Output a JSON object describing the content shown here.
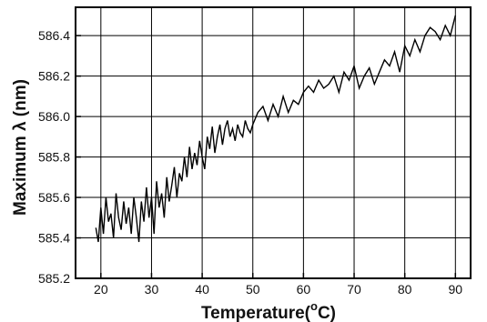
{
  "chart_data": {
    "type": "line",
    "title": "",
    "xlabel": "Temperature( °C)",
    "xlabel_main": "Temperature(",
    "xlabel_sup": "o",
    "xlabel_unit": "C)",
    "ylabel": "Maximum λ (nm)",
    "xlim": [
      15,
      93
    ],
    "ylim": [
      585.2,
      586.54
    ],
    "xticks": [
      20,
      30,
      40,
      50,
      60,
      70,
      80,
      90
    ],
    "xtick_labels": [
      "20",
      "30",
      "40",
      "50",
      "60",
      "70",
      "80",
      "90"
    ],
    "yticks": [
      585.2,
      585.4,
      585.6,
      585.8,
      586.0,
      586.2,
      586.4
    ],
    "ytick_labels": [
      "585.2",
      "585.4",
      "585.6",
      "585.8",
      "586.0",
      "586.2",
      "586.4"
    ],
    "grid": true,
    "series": [
      {
        "x": [
          19.0,
          19.5,
          20.0,
          20.5,
          21.0,
          21.5,
          22.0,
          22.5,
          23.0,
          23.5,
          24.0,
          24.5,
          25.0,
          25.5,
          26.0,
          26.5,
          27.0,
          27.5,
          28.0,
          28.5,
          29.0,
          29.5,
          30.0,
          30.5,
          31.0,
          31.5,
          32.0,
          32.5,
          33.0,
          33.5,
          34.0,
          34.5,
          35.0,
          35.5,
          36.0,
          36.5,
          37.0,
          37.5,
          38.0,
          38.5,
          39.0,
          39.5,
          40.0,
          40.5,
          41.0,
          41.5,
          42.0,
          42.5,
          43.0,
          43.5,
          44.0,
          44.5,
          45.0,
          45.5,
          46.0,
          46.5,
          47.0,
          47.5,
          48.0,
          48.5,
          49.0,
          49.5,
          50.0,
          51.0,
          52.0,
          53.0,
          54.0,
          55.0,
          56.0,
          57.0,
          58.0,
          59.0,
          60.0,
          61.0,
          62.0,
          63.0,
          64.0,
          65.0,
          66.0,
          67.0,
          68.0,
          69.0,
          70.0,
          71.0,
          72.0,
          73.0,
          74.0,
          75.0,
          76.0,
          77.0,
          78.0,
          79.0,
          80.0,
          81.0,
          82.0,
          83.0,
          84.0,
          85.0,
          86.0,
          87.0,
          88.0,
          89.0,
          90.0
        ],
        "y": [
          585.45,
          585.38,
          585.55,
          585.42,
          585.6,
          585.48,
          585.52,
          585.4,
          585.62,
          585.5,
          585.44,
          585.58,
          585.47,
          585.55,
          585.42,
          585.6,
          585.5,
          585.38,
          585.58,
          585.48,
          585.65,
          585.5,
          585.6,
          585.42,
          585.68,
          585.55,
          585.62,
          585.5,
          585.7,
          585.58,
          585.66,
          585.75,
          585.6,
          585.72,
          585.68,
          585.8,
          585.7,
          585.85,
          585.74,
          585.82,
          585.76,
          585.88,
          585.8,
          585.74,
          585.9,
          585.84,
          585.95,
          585.82,
          585.9,
          585.96,
          585.86,
          585.94,
          585.98,
          585.9,
          585.94,
          585.88,
          585.96,
          585.92,
          585.9,
          585.98,
          585.94,
          585.92,
          585.96,
          586.02,
          586.05,
          585.98,
          586.06,
          586.0,
          586.1,
          586.02,
          586.08,
          586.06,
          586.12,
          586.15,
          586.12,
          586.18,
          586.14,
          586.16,
          586.2,
          586.12,
          586.22,
          586.18,
          586.25,
          586.14,
          586.2,
          586.24,
          586.16,
          586.22,
          586.28,
          586.25,
          586.32,
          586.22,
          586.35,
          586.3,
          586.38,
          586.32,
          586.4,
          586.44,
          586.42,
          586.38,
          586.45,
          586.4,
          586.5
        ]
      }
    ]
  }
}
